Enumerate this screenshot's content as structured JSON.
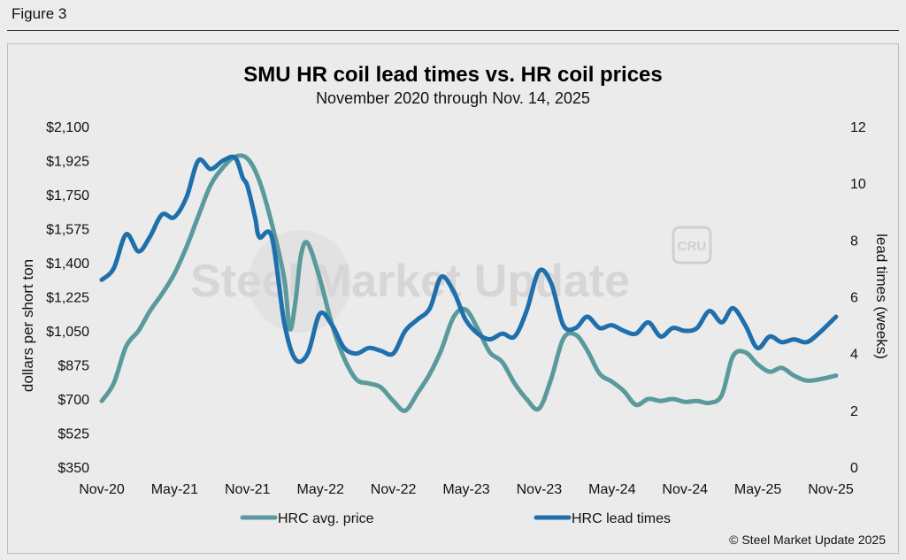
{
  "figure_label": "Figure 3",
  "copyright": "© Steel Market Update 2025",
  "watermark": {
    "brand": "Steel Market Update",
    "badge": "CRU"
  },
  "colors": {
    "price": "#5b9a9c",
    "lead": "#1f6fad",
    "text": "#111111"
  },
  "chart_data": {
    "type": "line",
    "title": "SMU HR coil lead times vs. HR coil prices",
    "subtitle": "November 2020 through Nov. 14, 2025",
    "ylabel_left": "dollars per short ton",
    "ylabel_right": "lead times (weeks)",
    "xlabel": "",
    "x_range": [
      "2020-11-01",
      "2025-11-14"
    ],
    "x_ticks": [
      "Nov-20",
      "May-21",
      "Nov-21",
      "May-22",
      "Nov-22",
      "May-23",
      "Nov-23",
      "May-24",
      "Nov-24",
      "May-25",
      "Nov-25"
    ],
    "y_left": {
      "range": [
        350,
        2100
      ],
      "ticks": [
        "$2,100",
        "$1,925",
        "$1,750",
        "$1,575",
        "$1,400",
        "$1,225",
        "$1,050",
        "$875",
        "$700",
        "$525",
        "$350"
      ]
    },
    "y_right": {
      "range": [
        0,
        12
      ],
      "ticks": [
        "12",
        "10",
        "8",
        "6",
        "4",
        "2",
        "0"
      ]
    },
    "grid": false,
    "legend_position": "bottom",
    "series": [
      {
        "name": "HRC avg. price",
        "axis": "left",
        "color": "#5b9a9c",
        "points": [
          [
            "2020-11-01",
            690
          ],
          [
            "2020-12-01",
            780
          ],
          [
            "2021-01-01",
            970
          ],
          [
            "2021-02-01",
            1050
          ],
          [
            "2021-03-01",
            1150
          ],
          [
            "2021-04-01",
            1240
          ],
          [
            "2021-05-01",
            1340
          ],
          [
            "2021-06-01",
            1480
          ],
          [
            "2021-07-01",
            1640
          ],
          [
            "2021-08-01",
            1800
          ],
          [
            "2021-09-01",
            1890
          ],
          [
            "2021-10-01",
            1945
          ],
          [
            "2021-11-01",
            1935
          ],
          [
            "2021-12-01",
            1820
          ],
          [
            "2022-01-01",
            1600
          ],
          [
            "2022-02-01",
            1320
          ],
          [
            "2022-02-15",
            1060
          ],
          [
            "2022-03-01",
            1200
          ],
          [
            "2022-03-15",
            1440
          ],
          [
            "2022-04-01",
            1500
          ],
          [
            "2022-05-01",
            1320
          ],
          [
            "2022-06-01",
            1080
          ],
          [
            "2022-07-01",
            910
          ],
          [
            "2022-08-01",
            800
          ],
          [
            "2022-09-01",
            780
          ],
          [
            "2022-10-01",
            760
          ],
          [
            "2022-11-01",
            690
          ],
          [
            "2022-12-01",
            640
          ],
          [
            "2023-01-01",
            730
          ],
          [
            "2023-02-01",
            830
          ],
          [
            "2023-03-01",
            950
          ],
          [
            "2023-04-01",
            1120
          ],
          [
            "2023-05-01",
            1160
          ],
          [
            "2023-06-01",
            1060
          ],
          [
            "2023-07-01",
            940
          ],
          [
            "2023-08-01",
            890
          ],
          [
            "2023-09-01",
            780
          ],
          [
            "2023-10-01",
            700
          ],
          [
            "2023-11-01",
            650
          ],
          [
            "2023-12-01",
            800
          ],
          [
            "2024-01-01",
            1010
          ],
          [
            "2024-02-01",
            1030
          ],
          [
            "2024-03-01",
            950
          ],
          [
            "2024-04-01",
            830
          ],
          [
            "2024-05-01",
            790
          ],
          [
            "2024-06-01",
            740
          ],
          [
            "2024-07-01",
            670
          ],
          [
            "2024-08-01",
            700
          ],
          [
            "2024-09-01",
            690
          ],
          [
            "2024-10-01",
            700
          ],
          [
            "2024-11-01",
            685
          ],
          [
            "2024-12-01",
            690
          ],
          [
            "2025-01-01",
            680
          ],
          [
            "2025-02-01",
            720
          ],
          [
            "2025-03-01",
            920
          ],
          [
            "2025-04-01",
            940
          ],
          [
            "2025-05-01",
            880
          ],
          [
            "2025-06-01",
            840
          ],
          [
            "2025-07-01",
            860
          ],
          [
            "2025-08-01",
            820
          ],
          [
            "2025-09-01",
            795
          ],
          [
            "2025-10-01",
            800
          ],
          [
            "2025-11-14",
            820
          ]
        ]
      },
      {
        "name": "HRC lead times",
        "axis": "right",
        "color": "#1f6fad",
        "points": [
          [
            "2020-11-01",
            6.6
          ],
          [
            "2020-12-01",
            7.0
          ],
          [
            "2021-01-01",
            8.2
          ],
          [
            "2021-02-01",
            7.6
          ],
          [
            "2021-03-01",
            8.1
          ],
          [
            "2021-04-01",
            8.9
          ],
          [
            "2021-05-01",
            8.8
          ],
          [
            "2021-06-01",
            9.5
          ],
          [
            "2021-07-01",
            10.8
          ],
          [
            "2021-08-01",
            10.5
          ],
          [
            "2021-09-01",
            10.8
          ],
          [
            "2021-10-01",
            10.9
          ],
          [
            "2021-10-20",
            10.2
          ],
          [
            "2021-11-01",
            9.9
          ],
          [
            "2021-11-20",
            8.8
          ],
          [
            "2021-12-01",
            8.1
          ],
          [
            "2022-01-01",
            8.1
          ],
          [
            "2022-02-01",
            5.1
          ],
          [
            "2022-03-01",
            3.8
          ],
          [
            "2022-04-01",
            4.0
          ],
          [
            "2022-05-01",
            5.4
          ],
          [
            "2022-06-01",
            5.0
          ],
          [
            "2022-07-01",
            4.2
          ],
          [
            "2022-08-01",
            4.0
          ],
          [
            "2022-09-01",
            4.2
          ],
          [
            "2022-10-01",
            4.1
          ],
          [
            "2022-11-01",
            4.0
          ],
          [
            "2022-12-01",
            4.8
          ],
          [
            "2023-01-01",
            5.2
          ],
          [
            "2023-02-01",
            5.6
          ],
          [
            "2023-03-01",
            6.7
          ],
          [
            "2023-04-01",
            6.2
          ],
          [
            "2023-05-01",
            5.2
          ],
          [
            "2023-06-01",
            4.7
          ],
          [
            "2023-07-01",
            4.5
          ],
          [
            "2023-08-01",
            4.7
          ],
          [
            "2023-09-01",
            4.6
          ],
          [
            "2023-10-01",
            5.5
          ],
          [
            "2023-11-01",
            6.9
          ],
          [
            "2023-12-01",
            6.5
          ],
          [
            "2024-01-01",
            5.0
          ],
          [
            "2024-02-01",
            4.9
          ],
          [
            "2024-03-01",
            5.3
          ],
          [
            "2024-04-01",
            4.9
          ],
          [
            "2024-05-01",
            5.0
          ],
          [
            "2024-06-01",
            4.8
          ],
          [
            "2024-07-01",
            4.7
          ],
          [
            "2024-08-01",
            5.1
          ],
          [
            "2024-09-01",
            4.6
          ],
          [
            "2024-10-01",
            4.9
          ],
          [
            "2024-11-01",
            4.8
          ],
          [
            "2024-12-01",
            4.9
          ],
          [
            "2025-01-01",
            5.5
          ],
          [
            "2025-02-01",
            5.1
          ],
          [
            "2025-03-01",
            5.6
          ],
          [
            "2025-04-01",
            5.0
          ],
          [
            "2025-05-01",
            4.2
          ],
          [
            "2025-06-01",
            4.6
          ],
          [
            "2025-07-01",
            4.4
          ],
          [
            "2025-08-01",
            4.5
          ],
          [
            "2025-09-01",
            4.4
          ],
          [
            "2025-10-01",
            4.7
          ],
          [
            "2025-11-14",
            5.3
          ]
        ]
      }
    ]
  }
}
